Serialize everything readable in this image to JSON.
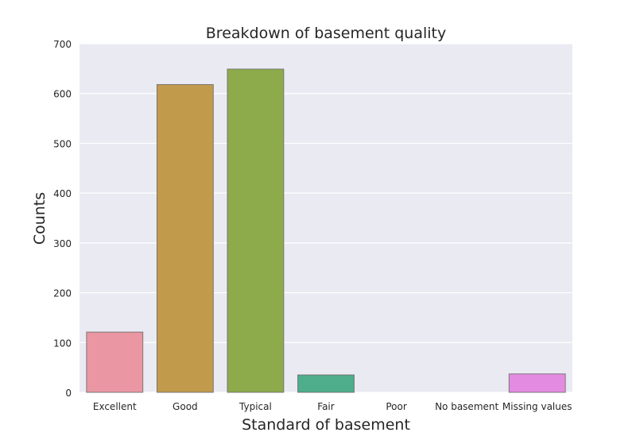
{
  "chart_data": {
    "type": "bar",
    "title": "Breakdown of basement quality",
    "xlabel": "Standard of basement",
    "ylabel": "Counts",
    "categories": [
      "Excellent",
      "Good",
      "Typical",
      "Fair",
      "Poor",
      "No basement",
      "Missing values"
    ],
    "values": [
      121,
      618,
      649,
      35,
      0,
      0,
      37
    ],
    "ylim": [
      0,
      700
    ],
    "yticks": [
      0,
      100,
      200,
      300,
      400,
      500,
      600,
      700
    ],
    "grid": "horizontal",
    "colors": {
      "background": "#eaeaf2",
      "grid": "#ffffff",
      "bars": [
        "#ea96a3",
        "#c19a4c",
        "#8eab4b",
        "#4eae8b",
        "#59a9bb",
        "#a6a0e8",
        "#e38be0"
      ],
      "bar_edge": "#707070"
    }
  }
}
